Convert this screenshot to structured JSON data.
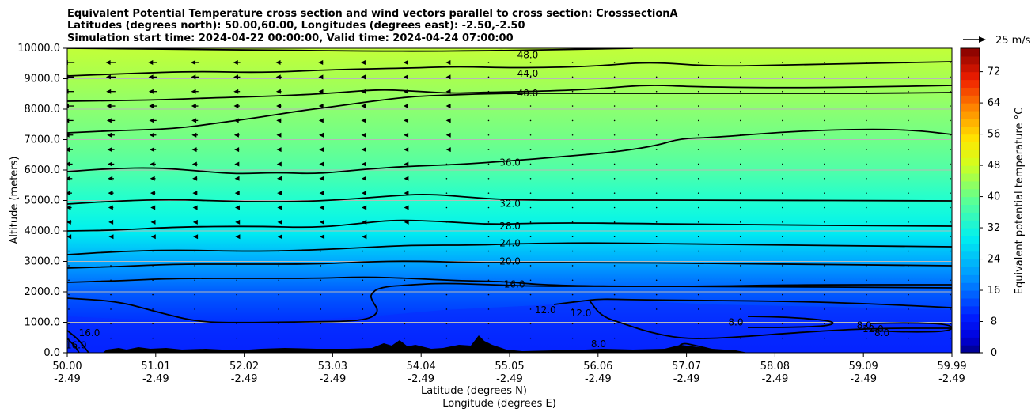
{
  "chart_data": {
    "type": "heatmap",
    "title_lines": [
      "Equivalent Potential Temperature cross section and wind vectors parallel to cross section: CrosssectionA",
      "Latitudes (degrees north): 50.00,60.00, Longitudes (degrees east): -2.50,-2.50",
      "Simulation start time: 2024-04-22 00:00:00, Valid time: 2024-04-24 07:00:00"
    ],
    "xlabel_lat": "Latitude (degrees N)",
    "xlabel_lon": "Longitude (degrees E)",
    "ylabel": "Altitude (meters)",
    "x_ticks": [
      {
        "lat": "50.00",
        "lon": "-2.49"
      },
      {
        "lat": "51.01",
        "lon": "-2.49"
      },
      {
        "lat": "52.02",
        "lon": "-2.49"
      },
      {
        "lat": "53.03",
        "lon": "-2.49"
      },
      {
        "lat": "54.04",
        "lon": "-2.49"
      },
      {
        "lat": "55.05",
        "lon": "-2.49"
      },
      {
        "lat": "56.06",
        "lon": "-2.49"
      },
      {
        "lat": "57.07",
        "lon": "-2.49"
      },
      {
        "lat": "58.08",
        "lon": "-2.49"
      },
      {
        "lat": "59.09",
        "lon": "-2.49"
      },
      {
        "lat": "59.99",
        "lon": "-2.49"
      }
    ],
    "y_ticks": [
      "0.0",
      "1000.0",
      "2000.0",
      "3000.0",
      "4000.0",
      "5000.0",
      "6000.0",
      "7000.0",
      "8000.0",
      "9000.0",
      "10000.0"
    ],
    "xlim": [
      50.0,
      59.99
    ],
    "ylim": [
      0,
      10000
    ],
    "grid": "horizontal",
    "colorbar": {
      "label": "Equivalent potential temperature °C",
      "ticks": [
        "0",
        "8",
        "16",
        "24",
        "32",
        "40",
        "48",
        "56",
        "64",
        "72"
      ],
      "range": [
        0,
        78
      ]
    },
    "quiver_key": {
      "label": "25 m/s",
      "value": 25
    },
    "contour_labels": [
      {
        "text": "48.0",
        "lat": 55.2,
        "alt": 9780
      },
      {
        "text": "44.0",
        "lat": 55.2,
        "alt": 9170
      },
      {
        "text": "40.0",
        "lat": 55.2,
        "alt": 8520
      },
      {
        "text": "36.0",
        "lat": 55.0,
        "alt": 6250
      },
      {
        "text": "32.0",
        "lat": 55.0,
        "alt": 4900
      },
      {
        "text": "28.0",
        "lat": 55.0,
        "alt": 4150
      },
      {
        "text": "24.0",
        "lat": 55.0,
        "alt": 3600
      },
      {
        "text": "20.0",
        "lat": 55.0,
        "alt": 3000
      },
      {
        "text": "16.0",
        "lat": 55.05,
        "alt": 2250
      },
      {
        "text": "12.0",
        "lat": 55.4,
        "alt": 1400
      },
      {
        "text": "12.0",
        "lat": 55.8,
        "alt": 1300
      },
      {
        "text": "16.0",
        "lat": 50.25,
        "alt": 650
      },
      {
        "text": "16.0",
        "lat": 50.1,
        "alt": 250
      },
      {
        "text": "8.0",
        "lat": 57.55,
        "alt": 1000
      },
      {
        "text": "8.0",
        "lat": 59.0,
        "alt": 900
      },
      {
        "text": "12.0",
        "lat": 59.1,
        "alt": 780
      },
      {
        "text": "8.0",
        "lat": 59.2,
        "alt": 650
      },
      {
        "text": "8.0",
        "lat": 56.0,
        "alt": 280
      }
    ]
  }
}
